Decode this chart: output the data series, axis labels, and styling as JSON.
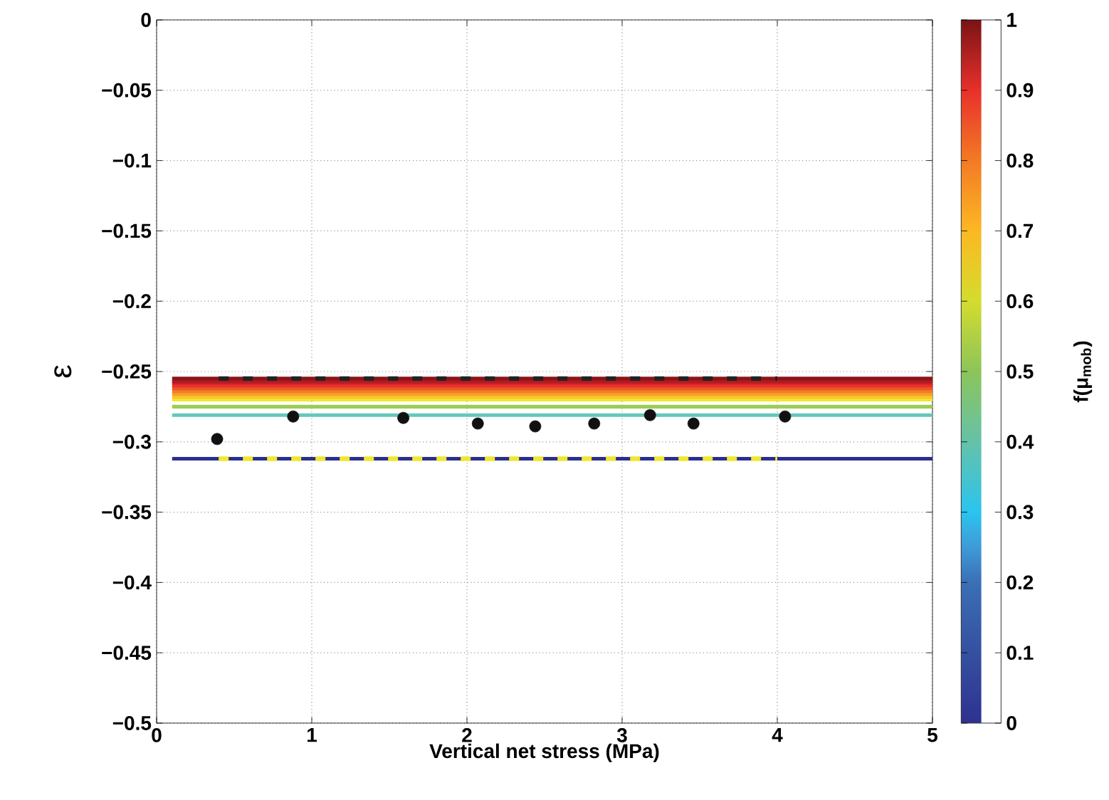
{
  "chart_data": {
    "type": "line",
    "xlabel": "Vertical net stress (MPa)",
    "ylabel": "ε",
    "clabel": "f(μ$_{mob}$)",
    "xlim": [
      0,
      5
    ],
    "xticks": [
      0,
      1,
      2,
      3,
      4,
      5
    ],
    "ylim": [
      -0.5,
      0
    ],
    "yticks": [
      {
        "value": -0.5,
        "label": "−0.5"
      },
      {
        "value": -0.45,
        "label": "−0.45"
      },
      {
        "value": -0.4,
        "label": "−0.4"
      },
      {
        "value": -0.35,
        "label": "−0.35"
      },
      {
        "value": -0.3,
        "label": "−0.3"
      },
      {
        "value": -0.25,
        "label": "−0.25"
      },
      {
        "value": -0.2,
        "label": "−0.2"
      },
      {
        "value": -0.15,
        "label": "−0.15"
      },
      {
        "value": -0.1,
        "label": "−0.1"
      },
      {
        "value": -0.05,
        "label": "−0.05"
      },
      0
    ],
    "clim": [
      0,
      1
    ],
    "cticks": [
      0,
      0.1,
      0.2,
      0.3,
      0.4,
      0.5,
      0.6,
      0.7,
      0.8,
      0.9,
      1
    ],
    "grid": true,
    "series": [
      {
        "color": "#2b2e8e",
        "x": [
          0.1,
          5
        ],
        "values": [
          -0.312,
          -0.312
        ]
      },
      {
        "color": "#63c9b9",
        "x": [
          0.1,
          5
        ],
        "values": [
          -0.281,
          -0.281
        ]
      },
      {
        "color": "#9bcc55",
        "x": [
          0.1,
          5
        ],
        "values": [
          -0.275,
          -0.275
        ]
      },
      {
        "color": "#f2e631",
        "x": [
          0.1,
          5
        ],
        "values": [
          -0.27,
          -0.27
        ]
      },
      {
        "color": "#f9c52a",
        "x": [
          0.1,
          5
        ],
        "values": [
          -0.268,
          -0.268
        ]
      },
      {
        "color": "#f7a02a",
        "x": [
          0.1,
          5
        ],
        "values": [
          -0.266,
          -0.266
        ]
      },
      {
        "color": "#f37c27",
        "x": [
          0.1,
          5
        ],
        "values": [
          -0.264,
          -0.264
        ]
      },
      {
        "color": "#ef5526",
        "x": [
          0.1,
          5
        ],
        "values": [
          -0.262,
          -0.262
        ]
      },
      {
        "color": "#e8322a",
        "x": [
          0.1,
          5
        ],
        "values": [
          -0.26,
          -0.26
        ]
      },
      {
        "color": "#d42028",
        "x": [
          0.1,
          5
        ],
        "values": [
          -0.258,
          -0.258
        ]
      },
      {
        "color": "#b01c22",
        "x": [
          0.1,
          5
        ],
        "values": [
          -0.257,
          -0.257
        ]
      },
      {
        "color": "#8c1418",
        "x": [
          0.1,
          5
        ],
        "values": [
          -0.255,
          -0.255
        ]
      },
      {
        "color": "#222222",
        "line_style": "dashed",
        "x": [
          0.4,
          4.0
        ],
        "values": [
          -0.255,
          -0.255
        ]
      },
      {
        "color": "#f0e830",
        "line_style": "dashed",
        "x": [
          0.4,
          4.0
        ],
        "values": [
          -0.312,
          -0.312
        ]
      },
      {
        "type": "scatter",
        "marker": "circle",
        "color": "#111111",
        "x": [
          0.39,
          0.88,
          1.59,
          2.07,
          2.44,
          2.82,
          3.18,
          3.46,
          4.05
        ],
        "values": [
          -0.298,
          -0.282,
          -0.283,
          -0.287,
          -0.289,
          -0.287,
          -0.281,
          -0.287,
          -0.282
        ]
      }
    ]
  }
}
